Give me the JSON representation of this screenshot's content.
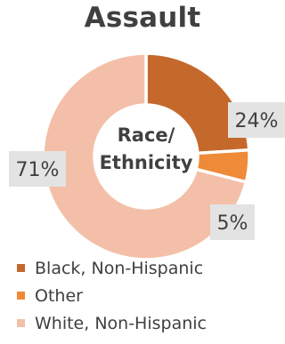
{
  "chart_data": {
    "type": "pie",
    "title": "Assault",
    "center_label": [
      "Race/",
      "Ethnicity"
    ],
    "categories": [
      "Black, Non-Hispanic",
      "Other",
      "White, Non-Hispanic"
    ],
    "values": [
      24,
      5,
      71
    ],
    "data_labels": [
      "24%",
      "5%",
      "71%"
    ],
    "colors": [
      "#c5682b",
      "#ee8a38",
      "#f4bfa8"
    ],
    "legend_position": "bottom"
  }
}
